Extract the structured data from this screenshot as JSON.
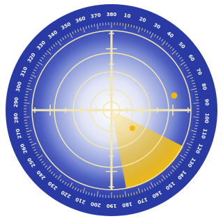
{
  "dial": {
    "labels": [
      "380",
      "10",
      "20",
      "30",
      "40",
      "50",
      "60",
      "70",
      "80",
      "90",
      "100",
      "110",
      "120",
      "130",
      "140",
      "150",
      "160",
      "170",
      "180",
      "190",
      "200",
      "210",
      "220",
      "230",
      "240",
      "250",
      "260",
      "270",
      "280",
      "290",
      "300",
      "310",
      "320",
      "330",
      "340",
      "350",
      "360",
      "370"
    ]
  }
}
